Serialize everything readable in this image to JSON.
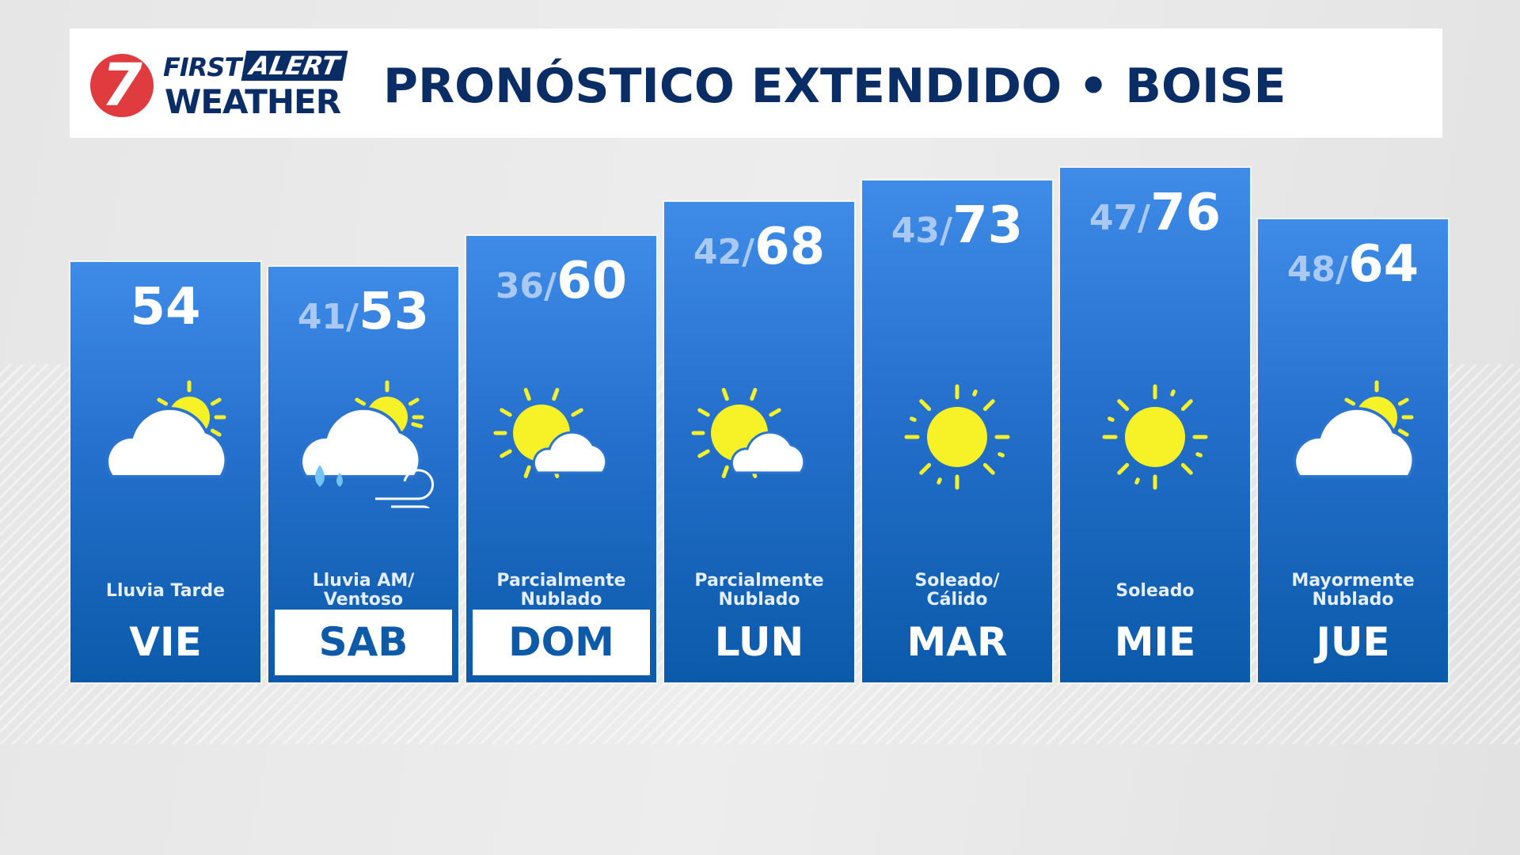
{
  "header": {
    "logo": {
      "number": "7",
      "first": "FIRST",
      "alert": "ALERT",
      "weather": "WEATHER"
    },
    "title": "PRONÓSTICO EXTENDIDO • BOISE"
  },
  "colors": {
    "navy": "#0b2d66",
    "logo_red": "#e03b3e",
    "sun": "#f7f227",
    "panel_top": "#3f8ce8",
    "panel_bottom": "#0b5aaa"
  },
  "days": [
    {
      "day": "VIE",
      "low": "",
      "high": "54",
      "desc1": "Lluvia Tarde",
      "desc2": "",
      "icon": "cloud-sun-icon",
      "highlight": false
    },
    {
      "day": "SAB",
      "low": "41/",
      "high": "53",
      "desc1": "Lluvia AM/",
      "desc2": "Ventoso",
      "icon": "rain-wind-icon",
      "highlight": true
    },
    {
      "day": "DOM",
      "low": "36/",
      "high": "60",
      "desc1": "Parcialmente",
      "desc2": "Nublado",
      "icon": "sun-cloud-icon",
      "highlight": true
    },
    {
      "day": "LUN",
      "low": "42/",
      "high": "68",
      "desc1": "Parcialmente",
      "desc2": "Nublado",
      "icon": "sun-cloud-icon",
      "highlight": false
    },
    {
      "day": "MAR",
      "low": "43/",
      "high": "73",
      "desc1": "Soleado/",
      "desc2": "Cálido",
      "icon": "sun-icon",
      "highlight": false
    },
    {
      "day": "MIE",
      "low": "47/",
      "high": "76",
      "desc1": "Soleado",
      "desc2": "",
      "icon": "sun-icon",
      "highlight": false
    },
    {
      "day": "JUE",
      "low": "48/",
      "high": "64",
      "desc1": "Mayormente",
      "desc2": "Nublado",
      "icon": "cloud-sun-icon",
      "highlight": false
    }
  ]
}
